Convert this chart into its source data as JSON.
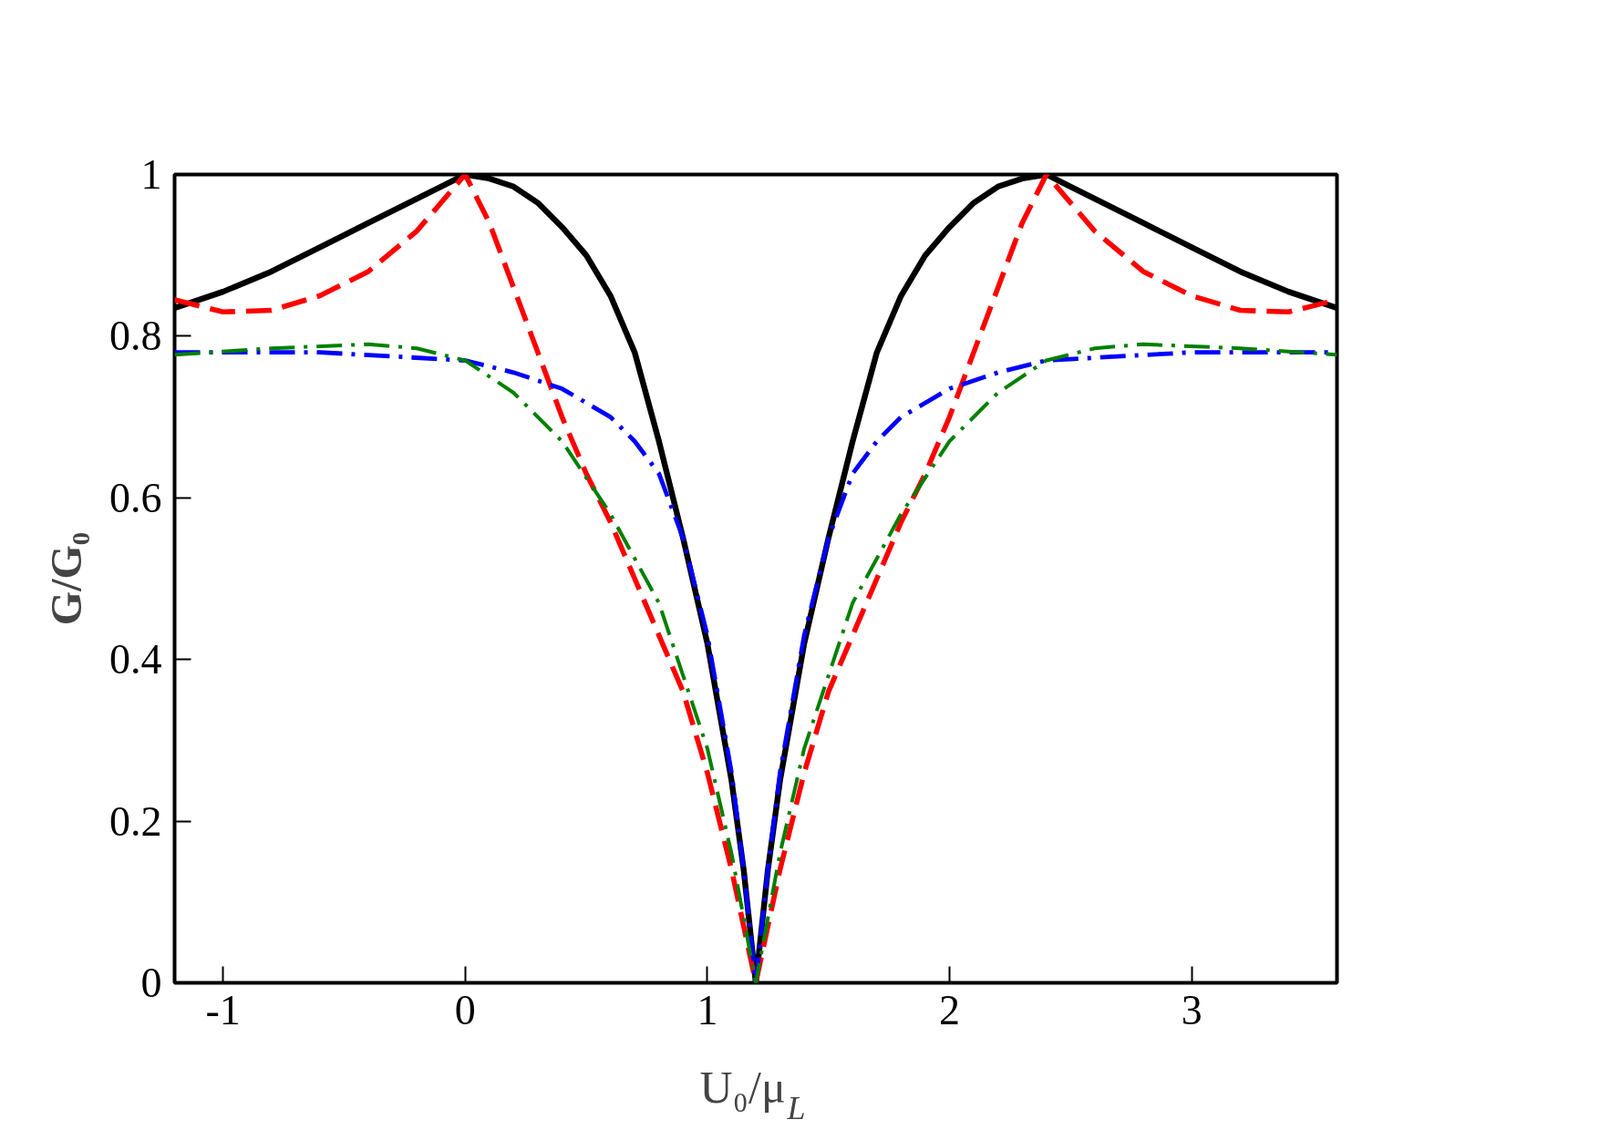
{
  "chart_data": {
    "type": "line",
    "xlabel": "U₀/μ$_{L}$",
    "ylabel": "G/G₀",
    "xlim": [
      -1.2,
      3.6
    ],
    "ylim": [
      0,
      1
    ],
    "xticks": [
      -1,
      0,
      1,
      2,
      3
    ],
    "yticks": [
      0,
      0.2,
      0.4,
      0.6,
      0.8,
      1
    ],
    "series": [
      {
        "color": "#000000",
        "line_style": "solid",
        "x": [
          -1.2,
          -1.0,
          -0.8,
          -0.6,
          -0.4,
          -0.2,
          -0.1,
          0,
          0.1,
          0.2,
          0.3,
          0.4,
          0.5,
          0.6,
          0.7,
          0.8,
          0.9,
          1.0,
          1.1,
          1.15,
          1.2,
          1.25,
          1.3,
          1.4,
          1.5,
          1.6,
          1.7,
          1.8,
          1.9,
          2.0,
          2.1,
          2.2,
          2.3,
          2.4,
          2.5,
          2.6,
          2.8,
          3.0,
          3.2,
          3.4,
          3.6
        ],
        "values": [
          0.835,
          0.855,
          0.88,
          0.91,
          0.94,
          0.97,
          0.985,
          1.0,
          0.995,
          0.985,
          0.965,
          0.935,
          0.9,
          0.85,
          0.78,
          0.67,
          0.55,
          0.42,
          0.25,
          0.14,
          0,
          0.14,
          0.25,
          0.42,
          0.55,
          0.67,
          0.78,
          0.85,
          0.9,
          0.935,
          0.965,
          0.985,
          0.995,
          1.0,
          0.985,
          0.97,
          0.94,
          0.91,
          0.88,
          0.855,
          0.835
        ]
      },
      {
        "color": "#ff0000",
        "line_style": "dashed",
        "x": [
          -1.2,
          -1.0,
          -0.8,
          -0.6,
          -0.4,
          -0.2,
          0,
          0.1,
          0.2,
          0.3,
          0.4,
          0.5,
          0.6,
          0.7,
          0.8,
          0.9,
          1.0,
          1.1,
          1.2,
          1.3,
          1.4,
          1.5,
          1.6,
          1.7,
          1.8,
          1.9,
          2.0,
          2.1,
          2.2,
          2.3,
          2.4,
          2.6,
          2.8,
          3.0,
          3.2,
          3.4,
          3.6
        ],
        "values": [
          0.845,
          0.83,
          0.832,
          0.85,
          0.88,
          0.93,
          1.0,
          0.94,
          0.86,
          0.78,
          0.7,
          0.63,
          0.57,
          0.5,
          0.43,
          0.36,
          0.26,
          0.14,
          0,
          0.14,
          0.26,
          0.36,
          0.43,
          0.5,
          0.57,
          0.63,
          0.7,
          0.78,
          0.86,
          0.94,
          1.0,
          0.93,
          0.88,
          0.85,
          0.832,
          0.83,
          0.845
        ]
      },
      {
        "color": "#0000ff",
        "line_style": "dashdot",
        "x": [
          -1.2,
          -0.6,
          0,
          0.2,
          0.4,
          0.6,
          0.7,
          0.8,
          0.9,
          1.0,
          1.1,
          1.15,
          1.2,
          1.25,
          1.3,
          1.4,
          1.5,
          1.6,
          1.7,
          1.8,
          2.0,
          2.2,
          2.4,
          3.0,
          3.6
        ],
        "values": [
          0.78,
          0.78,
          0.77,
          0.755,
          0.735,
          0.7,
          0.67,
          0.63,
          0.55,
          0.43,
          0.26,
          0.14,
          0,
          0.14,
          0.26,
          0.43,
          0.55,
          0.63,
          0.67,
          0.7,
          0.735,
          0.755,
          0.77,
          0.78,
          0.78
        ]
      },
      {
        "color": "#008000",
        "line_style": "dashdot",
        "x": [
          -1.2,
          -0.8,
          -0.4,
          -0.2,
          0,
          0.2,
          0.4,
          0.6,
          0.8,
          1.0,
          1.1,
          1.2,
          1.3,
          1.4,
          1.6,
          1.8,
          2.0,
          2.2,
          2.4,
          2.6,
          2.8,
          3.2,
          3.6
        ],
        "values": [
          0.777,
          0.785,
          0.79,
          0.785,
          0.77,
          0.73,
          0.67,
          0.58,
          0.47,
          0.29,
          0.16,
          0,
          0.16,
          0.29,
          0.47,
          0.58,
          0.67,
          0.73,
          0.77,
          0.785,
          0.79,
          0.785,
          0.777
        ]
      }
    ]
  }
}
